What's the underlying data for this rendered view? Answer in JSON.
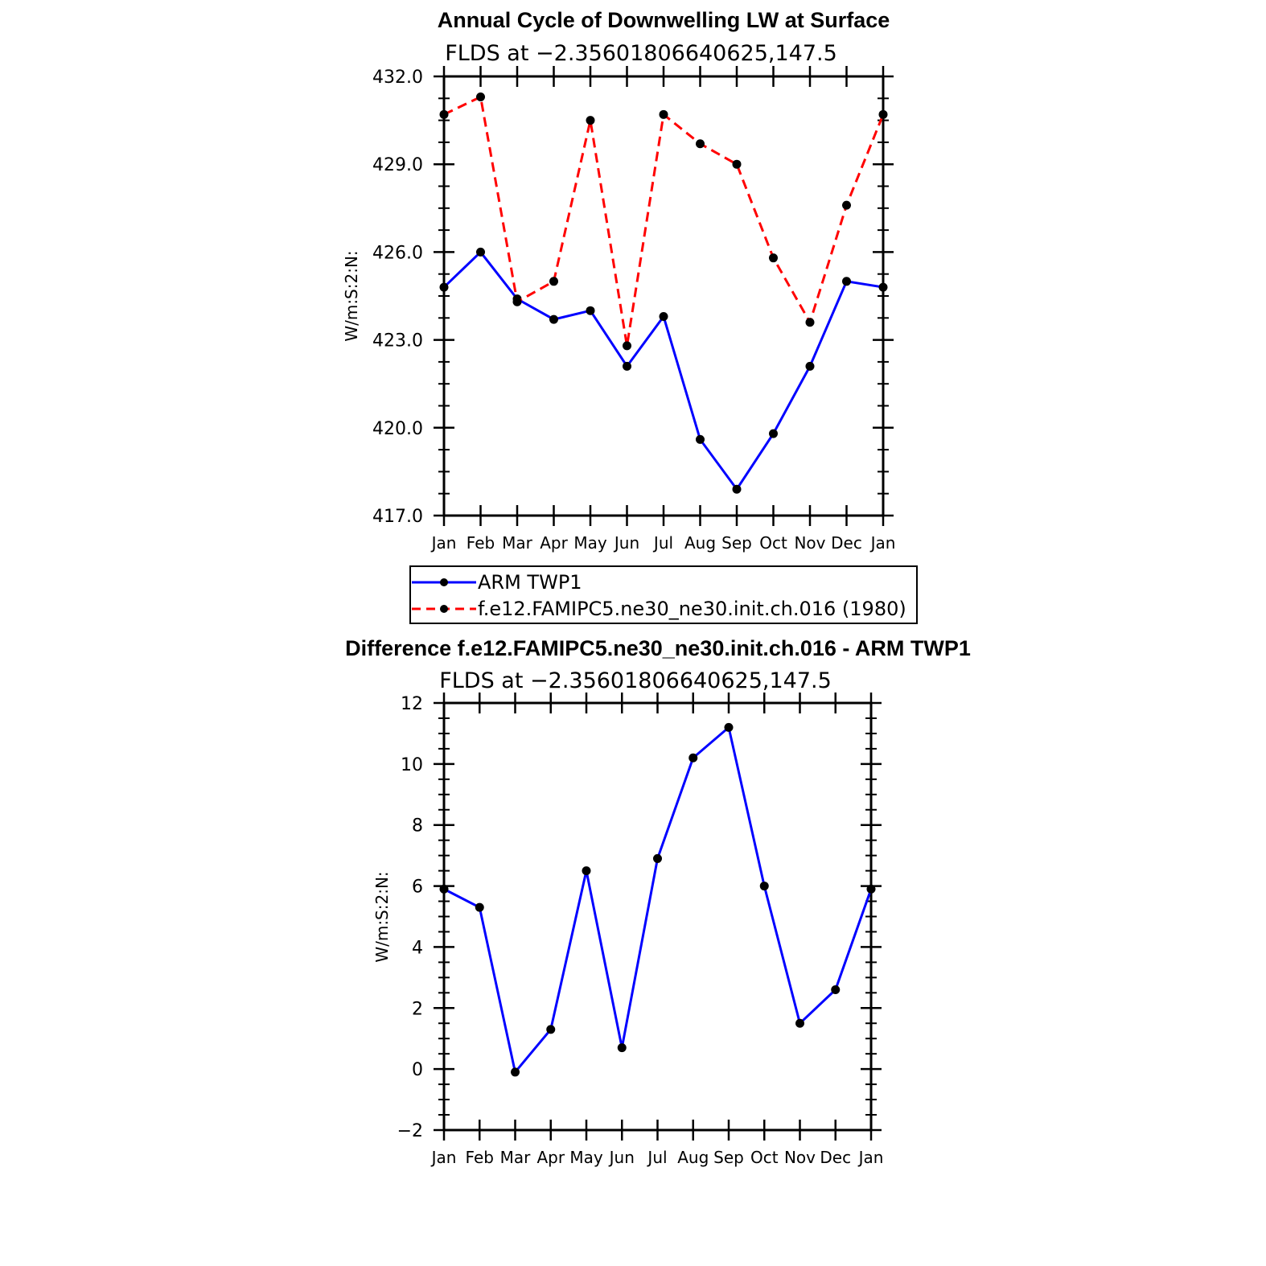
{
  "chart_data": [
    {
      "type": "line",
      "title": "Annual Cycle of Downwelling LW at Surface",
      "subtitle": "FLDS at −2.35601806640625,147.5",
      "ylabel": "W/m:S:2:N:",
      "xlabel": "",
      "categories": [
        "Jan",
        "Feb",
        "Mar",
        "Apr",
        "May",
        "Jun",
        "Jul",
        "Aug",
        "Sep",
        "Oct",
        "Nov",
        "Dec",
        "Jan"
      ],
      "ylim": [
        417,
        432
      ],
      "yticks": [
        417,
        420,
        423,
        426,
        429,
        432
      ],
      "ytick_labels": [
        "417.0",
        "420.0",
        "423.0",
        "426.0",
        "429.0",
        "432.0"
      ],
      "series": [
        {
          "name": "ARM TWP1",
          "color": "#0000ff",
          "dash": "solid",
          "values": [
            424.8,
            426.0,
            424.4,
            423.7,
            424.0,
            422.1,
            423.8,
            419.6,
            417.9,
            419.8,
            422.1,
            425.0,
            424.8
          ]
        },
        {
          "name": "f.e12.FAMIPC5.ne30_ne30.init.ch.016 (1980)",
          "color": "#ff0000",
          "dash": "dashed",
          "values": [
            430.7,
            431.3,
            424.3,
            425.0,
            430.5,
            422.8,
            430.7,
            429.7,
            429.0,
            425.8,
            423.6,
            427.6,
            430.7
          ]
        }
      ],
      "legend": {
        "position": "below",
        "entries": [
          "ARM TWP1",
          "f.e12.FAMIPC5.ne30_ne30.init.ch.016 (1980)"
        ]
      }
    },
    {
      "type": "line",
      "title": "Difference f.e12.FAMIPC5.ne30_ne30.init.ch.016 - ARM TWP1",
      "subtitle": "FLDS at −2.35601806640625,147.5",
      "ylabel": "W/m:S:2:N:",
      "xlabel": "",
      "categories": [
        "Jan",
        "Feb",
        "Mar",
        "Apr",
        "May",
        "Jun",
        "Jul",
        "Aug",
        "Sep",
        "Oct",
        "Nov",
        "Dec",
        "Jan"
      ],
      "ylim": [
        -2,
        12
      ],
      "yticks": [
        -2,
        0,
        2,
        4,
        6,
        8,
        10,
        12
      ],
      "ytick_labels": [
        "−2",
        "0",
        "2",
        "4",
        "6",
        "8",
        "10",
        "12"
      ],
      "series": [
        {
          "name": "Difference",
          "color": "#0000ff",
          "dash": "solid",
          "values": [
            5.9,
            5.3,
            -0.1,
            1.3,
            6.5,
            0.7,
            6.9,
            10.2,
            11.2,
            6.0,
            1.5,
            2.6,
            5.9
          ]
        }
      ]
    }
  ]
}
